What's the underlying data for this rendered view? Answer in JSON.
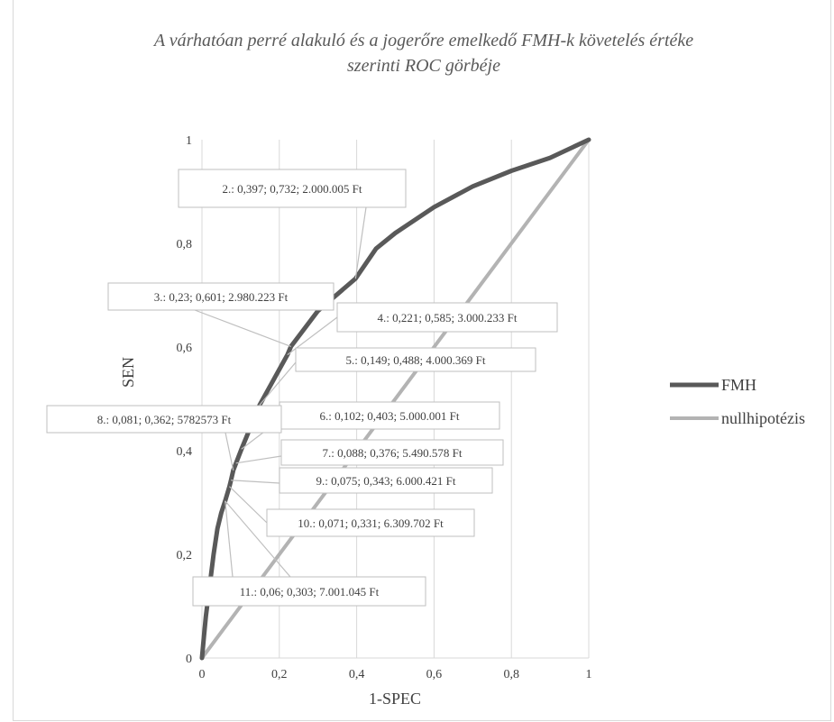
{
  "chart_data": {
    "type": "line",
    "title": "A várhatóan perré alakuló és a jogerőre emelkedő FMH-k követelés értéke szerinti ROC görbéje",
    "title_lines": [
      "A várhatóan perré alakuló és a jogerőre emelkedő FMH-k követelés értéke",
      "szerinti ROC görbéje"
    ],
    "xlabel": "1-SPEC",
    "ylabel": "SEN",
    "xlim": [
      0,
      1
    ],
    "ylim": [
      0,
      1
    ],
    "x_ticks": [
      "0",
      "0,2",
      "0,4",
      "0,6",
      "0,8",
      "1"
    ],
    "y_ticks": [
      "0",
      "0,2",
      "0,4",
      "0,6",
      "0,8",
      "1"
    ],
    "grid": "vertical",
    "legend_position": "right",
    "series": [
      {
        "name": "FMH",
        "color": "#595959",
        "x": [
          0,
          0.005,
          0.01,
          0.02,
          0.03,
          0.04,
          0.05,
          0.06,
          0.071,
          0.075,
          0.081,
          0.088,
          0.102,
          0.149,
          0.221,
          0.23,
          0.3,
          0.397,
          0.45,
          0.5,
          0.6,
          0.7,
          0.8,
          0.9,
          1
        ],
        "y": [
          0,
          0.04,
          0.08,
          0.14,
          0.2,
          0.25,
          0.28,
          0.303,
          0.331,
          0.343,
          0.362,
          0.376,
          0.403,
          0.488,
          0.585,
          0.601,
          0.67,
          0.732,
          0.79,
          0.82,
          0.87,
          0.91,
          0.94,
          0.965,
          1
        ]
      },
      {
        "name": "nullhipotézis",
        "color": "#b3b3b3",
        "x": [
          0,
          1
        ],
        "y": [
          0,
          1
        ]
      }
    ],
    "annotations": [
      {
        "label": "2.: 0,397; 0,732; 2.000.005 Ft",
        "x": 0.397,
        "y": 0.732
      },
      {
        "label": "3.: 0,23; 0,601; 2.980.223 Ft",
        "x": 0.23,
        "y": 0.601
      },
      {
        "label": "4.: 0,221; 0,585; 3.000.233 Ft",
        "x": 0.221,
        "y": 0.585
      },
      {
        "label": "5.: 0,149; 0,488; 4.000.369 Ft",
        "x": 0.149,
        "y": 0.488
      },
      {
        "label": "6.: 0,102; 0,403; 5.000.001 Ft",
        "x": 0.102,
        "y": 0.403
      },
      {
        "label": "7.: 0,088; 0,376; 5.490.578 Ft",
        "x": 0.088,
        "y": 0.376
      },
      {
        "label": "8.: 0,081; 0,362; 5782573 Ft",
        "x": 0.081,
        "y": 0.362
      },
      {
        "label": "9.: 0,075; 0,343; 6.000.421 Ft",
        "x": 0.075,
        "y": 0.343
      },
      {
        "label": "10.: 0,071; 0,331; 6.309.702 Ft",
        "x": 0.071,
        "y": 0.331
      },
      {
        "label": "11.: 0,06; 0,303; 7.001.045 Ft",
        "x": 0.06,
        "y": 0.303
      }
    ]
  }
}
